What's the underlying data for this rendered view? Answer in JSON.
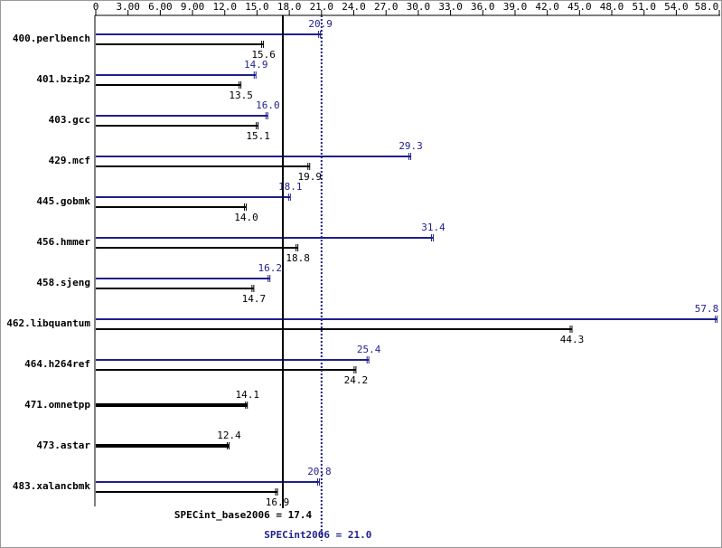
{
  "chart_data": {
    "type": "bar",
    "orientation": "horizontal",
    "categories": [
      "400.perlbench",
      "401.bzip2",
      "403.gcc",
      "429.mcf",
      "445.gobmk",
      "456.hmmer",
      "458.sjeng",
      "462.libquantum",
      "464.h264ref",
      "471.omnetpp",
      "473.astar",
      "483.xalancbmk"
    ],
    "series": [
      {
        "color": "#1f1f8f",
        "values": [
          20.9,
          14.9,
          16.0,
          29.3,
          18.1,
          31.4,
          16.2,
          57.8,
          25.4,
          null,
          null,
          20.8
        ],
        "value_labels": [
          "20.9",
          "14.9",
          "16.0",
          "29.3",
          "18.1",
          "31.4",
          "16.2",
          "57.8",
          "25.4",
          null,
          null,
          "20.8"
        ]
      },
      {
        "color": "#000000",
        "values": [
          15.6,
          13.5,
          15.1,
          19.9,
          14.0,
          18.8,
          14.7,
          44.3,
          24.2,
          14.1,
          12.4,
          16.9
        ],
        "value_labels": [
          "15.6",
          "13.5",
          "15.1",
          "19.9",
          "14.0",
          "18.8",
          "14.7",
          "44.3",
          "24.2",
          "14.1",
          "12.4",
          "16.9"
        ]
      }
    ],
    "xlim": [
      0,
      58.0
    ],
    "xticks": [
      0,
      {
        "value": 3,
        "label": "3.00"
      },
      {
        "value": 6,
        "label": "6.00"
      },
      {
        "value": 9,
        "label": "9.00"
      },
      {
        "value": 12,
        "label": "12.0"
      },
      {
        "value": 15,
        "label": "15.0"
      },
      {
        "value": 18,
        "label": "18.0"
      },
      {
        "value": 21,
        "label": "21.0"
      },
      {
        "value": 24,
        "label": "24.0"
      },
      {
        "value": 27,
        "label": "27.0"
      },
      {
        "value": 30,
        "label": "30.0"
      },
      {
        "value": 33,
        "label": "33.0"
      },
      {
        "value": 36,
        "label": "36.0"
      },
      {
        "value": 39,
        "label": "39.0"
      },
      {
        "value": 42,
        "label": "42.0"
      },
      {
        "value": 45,
        "label": "45.0"
      },
      {
        "value": 48,
        "label": "48.0"
      },
      {
        "value": 51,
        "label": "51.0"
      },
      {
        "value": 54,
        "label": "54.0"
      },
      {
        "value": 58,
        "label": "58.0"
      }
    ],
    "reference_lines": [
      {
        "value": 17.4,
        "label": "SPECint_base2006 = 17.4",
        "color": "#000000",
        "style": "solid"
      },
      {
        "value": 21.0,
        "label": "SPECint2006 = 21.0",
        "color": "#1f1f8f",
        "style": "dotted"
      }
    ]
  }
}
